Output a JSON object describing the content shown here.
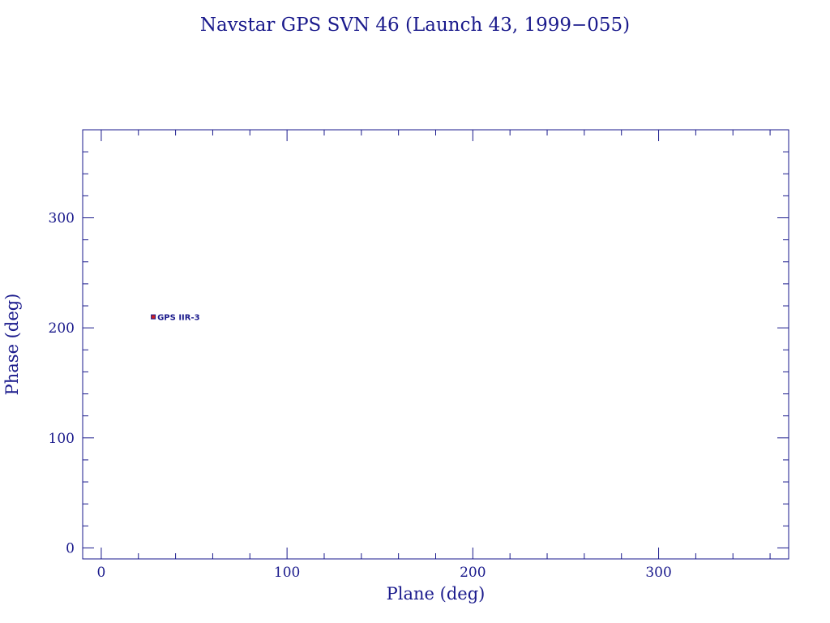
{
  "chart_data": {
    "type": "scatter",
    "title": "Navstar GPS SVN 46 (Launch 43, 1999−055)",
    "xlabel": "Plane (deg)",
    "ylabel": "Phase (deg)",
    "xlim": [
      -10,
      370
    ],
    "ylim": [
      -10,
      380
    ],
    "x_ticks": [
      0,
      100,
      200,
      300
    ],
    "y_ticks": [
      0,
      100,
      200,
      300
    ],
    "x_tick_labels": [
      "0",
      "100",
      "200",
      "300"
    ],
    "y_tick_labels": [
      "0",
      "100",
      "200",
      "300"
    ],
    "x_minor_step": 20,
    "y_minor_step": 20,
    "grid": false,
    "points": [
      {
        "x": 28,
        "y": 210,
        "label": "GPS IIR-3"
      }
    ],
    "colors": {
      "axis": "#1a1a8c",
      "text": "#1a1a8c",
      "point_fill": "#d02020",
      "point_stroke": "#1a1a8c",
      "label": "#1a1a8c"
    }
  }
}
